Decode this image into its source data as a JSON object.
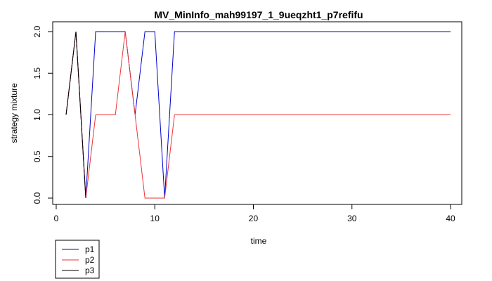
{
  "chart_data": {
    "type": "line",
    "title": "MV_MinInfo_mah99197_1_9ueqzht1_p7refifu",
    "xlabel": "time",
    "ylabel": "strategy mixture",
    "xlim": [
      1,
      40
    ],
    "ylim": [
      0,
      2
    ],
    "xticks": [
      0,
      10,
      20,
      30,
      40
    ],
    "yticks": [
      0.0,
      0.5,
      1.0,
      1.5,
      2.0
    ],
    "ytick_labels": [
      "0.0",
      "0.5",
      "1.0",
      "1.5",
      "2.0"
    ],
    "grid": false,
    "legend_position": "bottom-left",
    "series": [
      {
        "name": "p1",
        "color": "#0000cc",
        "x": [
          1,
          2,
          3,
          4,
          5,
          6,
          7,
          8,
          9,
          10,
          11,
          12,
          13,
          14,
          15,
          16,
          17,
          18,
          19,
          20,
          21,
          22,
          23,
          24,
          25,
          26,
          27,
          28,
          29,
          30,
          31,
          32,
          33,
          34,
          35,
          36,
          37,
          38,
          39,
          40
        ],
        "values": [
          1,
          2,
          0,
          2,
          2,
          2,
          2,
          1,
          2,
          2,
          0,
          2,
          2,
          2,
          2,
          2,
          2,
          2,
          2,
          2,
          2,
          2,
          2,
          2,
          2,
          2,
          2,
          2,
          2,
          2,
          2,
          2,
          2,
          2,
          2,
          2,
          2,
          2,
          2,
          2
        ]
      },
      {
        "name": "p2",
        "color": "#ee3333",
        "x": [
          1,
          2,
          3,
          4,
          5,
          6,
          7,
          8,
          9,
          10,
          11,
          12,
          13,
          14,
          15,
          16,
          17,
          18,
          19,
          20,
          21,
          22,
          23,
          24,
          25,
          26,
          27,
          28,
          29,
          30,
          31,
          32,
          33,
          34,
          35,
          36,
          37,
          38,
          39,
          40
        ],
        "values": [
          1,
          2,
          0,
          1,
          1,
          1,
          2,
          1,
          0,
          0,
          0,
          1,
          1,
          1,
          1,
          1,
          1,
          1,
          1,
          1,
          1,
          1,
          1,
          1,
          1,
          1,
          1,
          1,
          1,
          1,
          1,
          1,
          1,
          1,
          1,
          1,
          1,
          1,
          1,
          1
        ]
      },
      {
        "name": "p3",
        "color": "#000000",
        "x": [
          1,
          2,
          3
        ],
        "values": [
          1,
          2,
          0
        ]
      }
    ]
  }
}
